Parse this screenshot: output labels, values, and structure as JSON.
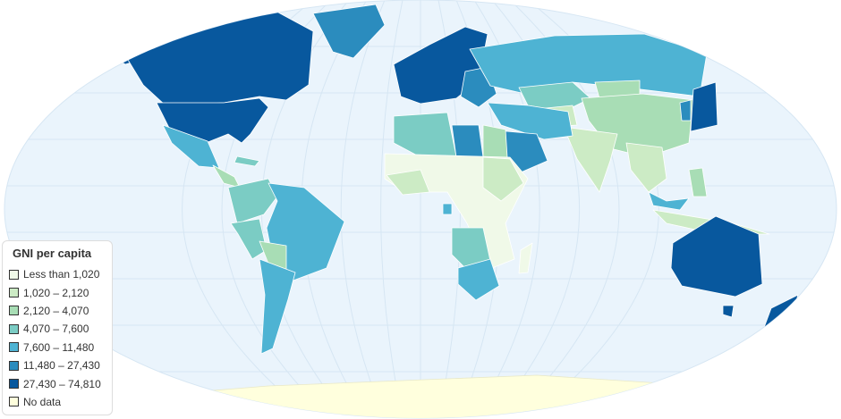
{
  "legend": {
    "title": "GNI per capita",
    "items": [
      {
        "label": "Less than 1,020",
        "color": "#f0f9e8"
      },
      {
        "label": "1,020 – 2,120",
        "color": "#ccebc5"
      },
      {
        "label": "2,120 – 4,070",
        "color": "#a8ddb5"
      },
      {
        "label": "4,070 – 7,600",
        "color": "#7bccc4"
      },
      {
        "label": "7,600 – 11,480",
        "color": "#4eb3d3"
      },
      {
        "label": "11,480 – 27,430",
        "color": "#2b8cbe"
      },
      {
        "label": "27,430 – 74,810",
        "color": "#08589e"
      },
      {
        "label": "No data",
        "color": "#ffffdd"
      }
    ]
  },
  "colors": {
    "ocean": "#eaf4fc",
    "grid": "#d6e6f3",
    "border": "#ffffff"
  }
}
